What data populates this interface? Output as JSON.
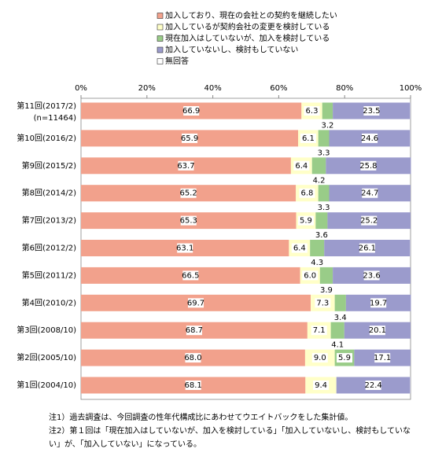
{
  "chart_data": {
    "type": "stacked-bar-horizontal",
    "categories": [
      "第11回(2017/2)",
      "第10回(2016/2)",
      "第9回(2015/2)",
      "第8回(2014/2)",
      "第7回(2013/2)",
      "第6回(2012/2)",
      "第5回(2011/2)",
      "第4回(2010/2)",
      "第3回(2008/10)",
      "第2回(2005/10)",
      "第1回(2004/10)"
    ],
    "category_note": "(n=11464)",
    "series": [
      {
        "name": "加入しており、現在の会社との契約を継続したい",
        "color": "#f2a18c",
        "values": [
          66.9,
          65.9,
          63.7,
          65.2,
          65.3,
          63.1,
          66.5,
          69.7,
          68.7,
          68.0,
          68.1
        ],
        "value_labels": [
          "66.9",
          "65.9",
          "63.7",
          "65.2",
          "65.3",
          "63.1",
          "66.5",
          "69.7",
          "68.7",
          "68.0",
          "68.1"
        ]
      },
      {
        "name": "加入しているが契約会社の変更を検討している",
        "color": "#ffffc8",
        "values": [
          6.3,
          6.1,
          6.4,
          6.8,
          5.9,
          6.4,
          6.0,
          7.3,
          7.1,
          9.0,
          9.4
        ],
        "value_labels": [
          "6.3",
          "6.1",
          "6.4",
          "6.8",
          "5.9",
          "6.4",
          "6.0",
          "7.3",
          "7.1",
          "9.0",
          "9.4"
        ]
      },
      {
        "name": "現在加入はしていないが、加入を検討している",
        "color": "#99cc88",
        "values": [
          3.2,
          3.3,
          4.2,
          3.3,
          3.6,
          4.3,
          3.9,
          3.4,
          4.1,
          5.9,
          null
        ],
        "value_labels": [
          "3.2",
          "3.3",
          "4.2",
          "3.3",
          "3.6",
          "4.3",
          "3.9",
          "3.4",
          "4.1",
          "5.9",
          null
        ]
      },
      {
        "name": "加入していないし、検討もしていない",
        "color": "#9b9bcc",
        "values": [
          23.5,
          24.6,
          25.8,
          24.7,
          25.2,
          26.1,
          23.6,
          19.7,
          20.1,
          17.1,
          22.4
        ],
        "value_labels": [
          "23.5",
          "24.6",
          "25.8",
          "24.7",
          "25.2",
          "26.1",
          "23.6",
          "19.7",
          "20.1",
          "17.1",
          "22.4"
        ]
      },
      {
        "name": "無回答",
        "color": "#ffffff",
        "values": [
          0.1,
          0.1,
          0,
          0,
          0,
          0.1,
          0,
          0,
          0,
          0,
          0.1
        ]
      }
    ],
    "xlim": [
      0,
      100
    ],
    "xticks": [
      {
        "value": 0,
        "label": "0%"
      },
      {
        "value": 20,
        "label": "20%"
      },
      {
        "value": 40,
        "label": "40%"
      },
      {
        "value": 60,
        "label": "60%"
      },
      {
        "value": 80,
        "label": "80%"
      },
      {
        "value": 100,
        "label": "100%"
      }
    ],
    "grid": false,
    "notes": [
      "注1）過去調査は、今回調査の性年代構成比にあわせてウエイトバックをした集計値。",
      "注2）第１回は「現在加入はしていないが、加入を検討している」「加入していないし、検討もしていな",
      "い」が、「加入していない」になっている。"
    ]
  }
}
